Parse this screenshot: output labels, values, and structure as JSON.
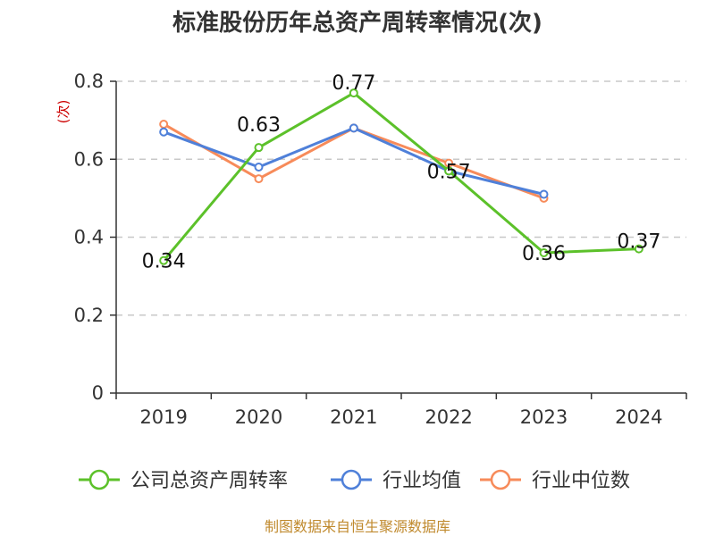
{
  "chart_data": {
    "type": "line",
    "title": "标准股份历年总资产周转率情况(次)",
    "ylabel": "(次)",
    "xlabel": "",
    "categories": [
      "2019",
      "2020",
      "2021",
      "2022",
      "2023",
      "2024"
    ],
    "ylim": [
      0,
      0.8
    ],
    "yticks": [
      0,
      0.2,
      0.4,
      0.6,
      0.8
    ],
    "ytick_labels": [
      "0",
      "0.2",
      "0.4",
      "0.6",
      "0.8"
    ],
    "grid": true,
    "legend_position": "bottom",
    "series": [
      {
        "name": "公司总资产周转率",
        "color": "#5cc12a",
        "values": [
          0.34,
          0.63,
          0.77,
          0.57,
          0.36,
          0.37
        ],
        "labels": [
          "0.34",
          "0.63",
          "0.77",
          "0.57",
          "0.36",
          "0.37"
        ]
      },
      {
        "name": "行业均值",
        "color": "#4f80d9",
        "values": [
          0.67,
          0.58,
          0.68,
          0.57,
          0.51,
          null
        ]
      },
      {
        "name": "行业中位数",
        "color": "#f78b5a",
        "values": [
          0.69,
          0.55,
          0.68,
          0.59,
          0.5,
          null
        ]
      }
    ],
    "source": "制图数据来自恒生聚源数据库"
  }
}
